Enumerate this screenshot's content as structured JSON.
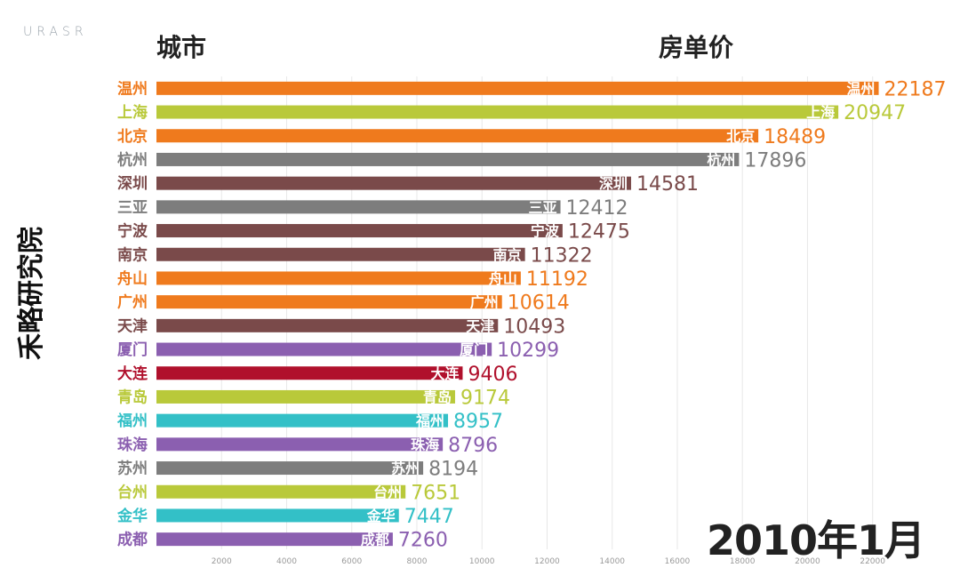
{
  "brand": {
    "logo_text": "URASR",
    "side_label": "禾略研究院"
  },
  "header": {
    "city_col": "城市",
    "price_col": "房单价"
  },
  "date_label": "2010年1月",
  "colors": {
    "orange": "#ef7a1d",
    "lime": "#b9c93a",
    "gray": "#7d7d7d",
    "brown": "#7a4a4a",
    "purple": "#8b5fb0",
    "red": "#b0102c",
    "teal": "#33c0c7"
  },
  "chart_data": {
    "type": "bar",
    "orientation": "horizontal",
    "xlabel": "",
    "ylabel": "",
    "xlim": [
      0,
      22500
    ],
    "x_ticks": [
      2000,
      4000,
      6000,
      8000,
      10000,
      12000,
      14000,
      16000,
      18000,
      20000,
      22000
    ],
    "grid": true,
    "bars": [
      {
        "city": "温州",
        "value": 22187,
        "color": "#ef7a1d"
      },
      {
        "city": "上海",
        "value": 20947,
        "color": "#b9c93a"
      },
      {
        "city": "北京",
        "value": 18489,
        "color": "#ef7a1d"
      },
      {
        "city": "杭州",
        "value": 17896,
        "color": "#7d7d7d"
      },
      {
        "city": "深圳",
        "value": 14581,
        "color": "#7a4a4a"
      },
      {
        "city": "三亚",
        "value": 12412,
        "color": "#7d7d7d"
      },
      {
        "city": "宁波",
        "value": 12475,
        "color": "#7a4a4a"
      },
      {
        "city": "南京",
        "value": 11322,
        "color": "#7a4a4a"
      },
      {
        "city": "舟山",
        "value": 11192,
        "color": "#ef7a1d"
      },
      {
        "city": "广州",
        "value": 10614,
        "color": "#ef7a1d"
      },
      {
        "city": "天津",
        "value": 10493,
        "color": "#7a4a4a"
      },
      {
        "city": "厦门",
        "value": 10299,
        "color": "#8b5fb0"
      },
      {
        "city": "大连",
        "value": 9406,
        "color": "#b0102c"
      },
      {
        "city": "青岛",
        "value": 9174,
        "color": "#b9c93a"
      },
      {
        "city": "福州",
        "value": 8957,
        "color": "#33c0c7"
      },
      {
        "city": "珠海",
        "value": 8796,
        "color": "#8b5fb0"
      },
      {
        "city": "苏州",
        "value": 8194,
        "color": "#7d7d7d"
      },
      {
        "city": "台州",
        "value": 7651,
        "color": "#b9c93a"
      },
      {
        "city": "金华",
        "value": 7447,
        "color": "#33c0c7"
      },
      {
        "city": "成都",
        "value": 7260,
        "color": "#8b5fb0"
      }
    ]
  }
}
